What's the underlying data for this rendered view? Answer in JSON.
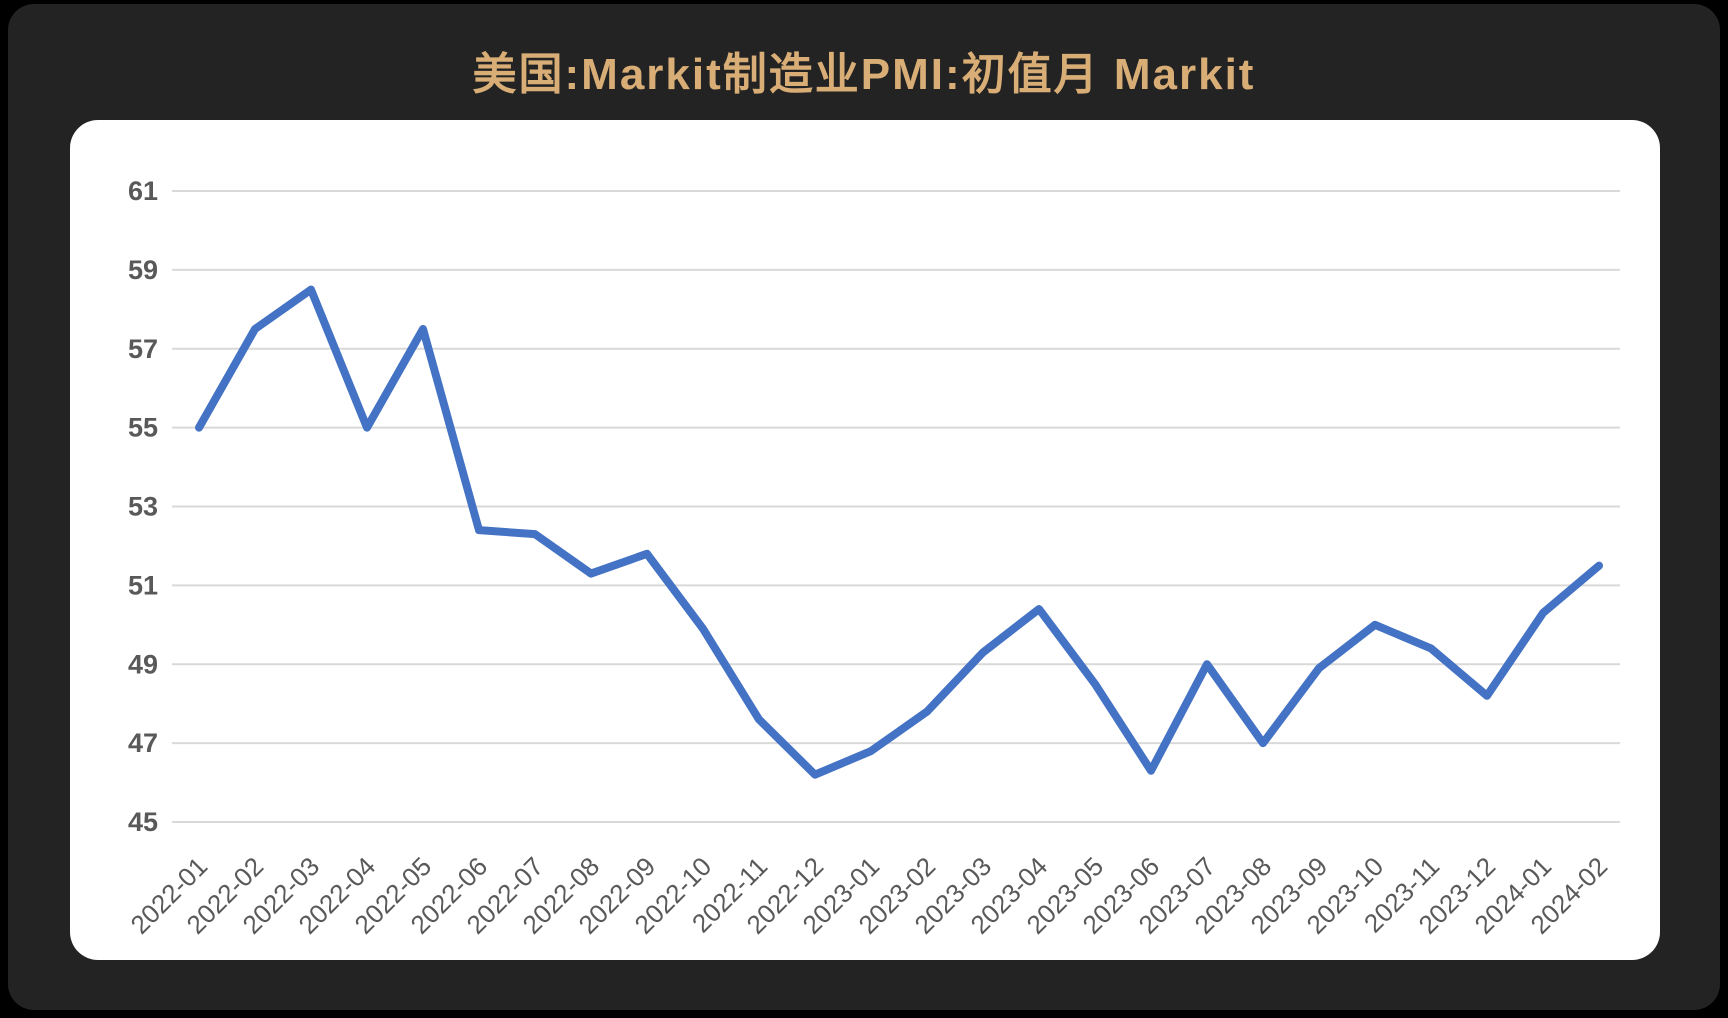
{
  "page": {
    "background": "#000000",
    "panel_background": "#232323"
  },
  "title": {
    "text": "美国:Markit制造业PMI:初值月 Markit",
    "color": "#d9ad76"
  },
  "chart_data": {
    "type": "line",
    "title": "美国:Markit制造业PMI:初值月 Markit",
    "categories": [
      "2022-01",
      "2022-02",
      "2022-03",
      "2022-04",
      "2022-05",
      "2022-06",
      "2022-07",
      "2022-08",
      "2022-09",
      "2022-10",
      "2022-11",
      "2022-12",
      "2023-01",
      "2023-02",
      "2023-03",
      "2023-04",
      "2023-05",
      "2023-06",
      "2023-07",
      "2023-08",
      "2023-09",
      "2023-10",
      "2023-11",
      "2023-12",
      "2024-01",
      "2024-02"
    ],
    "values": [
      55.0,
      57.5,
      58.5,
      55.0,
      57.5,
      52.4,
      52.3,
      51.3,
      51.8,
      49.9,
      47.6,
      46.2,
      46.8,
      47.8,
      49.3,
      50.4,
      48.5,
      46.3,
      49.0,
      47.0,
      48.9,
      50.0,
      49.4,
      48.2,
      50.3,
      51.5
    ],
    "xlabel": "",
    "ylabel": "",
    "ylim": [
      45,
      61
    ],
    "yticks": [
      45,
      47,
      49,
      51,
      53,
      55,
      57,
      59,
      61
    ],
    "grid": true,
    "legend": false,
    "line_color": "#4472c4",
    "grid_color": "#d9d9d9",
    "tick_label_color": "#595959",
    "plot_background": "#ffffff"
  }
}
